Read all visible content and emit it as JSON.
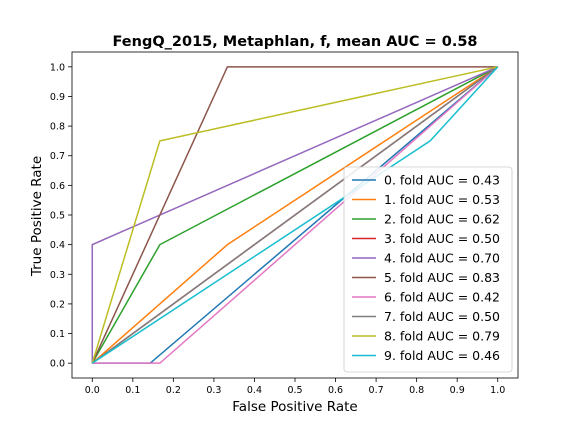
{
  "chart_data": {
    "type": "line",
    "title": "FengQ_2015, Metaphlan, f, mean AUC =  0.58",
    "xlabel": "False Positive Rate",
    "ylabel": "True Positive Rate",
    "xlim": [
      -0.05,
      1.05
    ],
    "ylim": [
      -0.05,
      1.05
    ],
    "xticks": [
      0.0,
      0.1,
      0.2,
      0.3,
      0.4,
      0.5,
      0.6,
      0.7,
      0.8,
      0.9,
      1.0
    ],
    "yticks": [
      0.0,
      0.1,
      0.2,
      0.3,
      0.4,
      0.5,
      0.6,
      0.7,
      0.8,
      0.9,
      1.0
    ],
    "tick_labels": [
      "0.0",
      "0.1",
      "0.2",
      "0.3",
      "0.4",
      "0.5",
      "0.6",
      "0.7",
      "0.8",
      "0.9",
      "1.0"
    ],
    "grid": false,
    "legend_position": "lower-right",
    "diagonal": {
      "x": [
        0,
        1
      ],
      "y": [
        0,
        1
      ],
      "color": "#808080",
      "style": "dashed"
    },
    "series": [
      {
        "name": "0. fold AUC = 0.43",
        "color": "#1f77b4",
        "x": [
          0,
          0.1429,
          1.0
        ],
        "y": [
          0,
          0,
          1.0
        ]
      },
      {
        "name": "1. fold AUC = 0.53",
        "color": "#ff7f0e",
        "x": [
          0,
          0.3333,
          1.0
        ],
        "y": [
          0,
          0.4,
          1.0
        ]
      },
      {
        "name": "2. fold AUC = 0.62",
        "color": "#2ca02c",
        "x": [
          0,
          0.1667,
          1.0
        ],
        "y": [
          0,
          0.4,
          1.0
        ]
      },
      {
        "name": "3. fold AUC = 0.50",
        "color": "#d62728",
        "x": [
          0,
          1.0
        ],
        "y": [
          0,
          1.0
        ]
      },
      {
        "name": "4. fold AUC = 0.70",
        "color": "#9467bd",
        "x": [
          0,
          0,
          1.0
        ],
        "y": [
          0,
          0.4,
          1.0
        ]
      },
      {
        "name": "5. fold AUC = 0.83",
        "color": "#8c564b",
        "x": [
          0,
          0.3333,
          1.0
        ],
        "y": [
          0,
          1.0,
          1.0
        ]
      },
      {
        "name": "6. fold AUC = 0.42",
        "color": "#e377c2",
        "x": [
          0,
          0.1667,
          1.0
        ],
        "y": [
          0,
          0,
          1.0
        ]
      },
      {
        "name": "7. fold AUC = 0.50",
        "color": "#7f7f7f",
        "x": [
          0,
          1.0
        ],
        "y": [
          0,
          1.0
        ]
      },
      {
        "name": "8. fold AUC = 0.79",
        "color": "#bcbd22",
        "x": [
          0,
          0.1667,
          1.0
        ],
        "y": [
          0,
          0.75,
          1.0
        ]
      },
      {
        "name": "9. fold AUC = 0.46",
        "color": "#17becf",
        "x": [
          0,
          0.8333,
          1.0
        ],
        "y": [
          0,
          0.75,
          1.0
        ]
      }
    ]
  }
}
